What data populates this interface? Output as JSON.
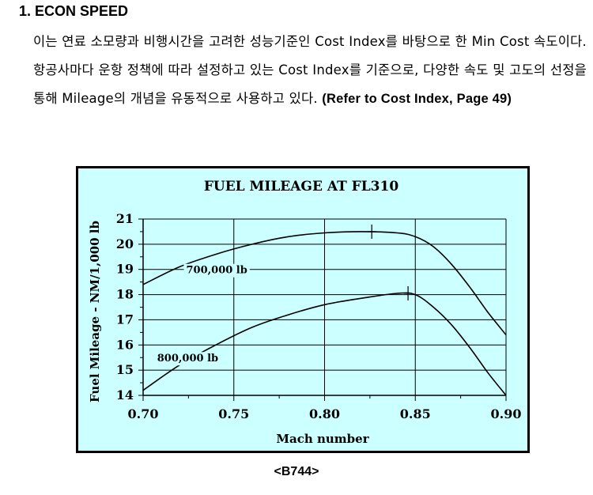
{
  "heading": "1. ECON SPEED",
  "paragraph": {
    "text": "이는 연료 소모량과 비행시간을 고려한 성능기준인 Cost Index를 바탕으로 한 Min Cost 속도이다. 항공사마다 운항 정책에 따라 설정하고 있는 Cost Index를 기준으로, 다양한 속도 및 고도의 선정을 통해 Mileage의 개념을 유동적으로 사용하고 있다. ",
    "reference": "(Refer to Cost Index, Page 49)"
  },
  "caption": "<B744>",
  "colors": {
    "plot_background": "#ccffff",
    "curve": "#000000",
    "grid": "#000000"
  },
  "chart_data": {
    "type": "line",
    "title": "FUEL MILEAGE AT FL310",
    "xlabel": "Mach number",
    "ylabel": "Fuel Mileage - NM/1,000 lb",
    "xlim": [
      0.7,
      0.9
    ],
    "ylim": [
      14,
      21
    ],
    "x_ticks": [
      "0.70",
      "0.75",
      "0.80",
      "0.85",
      "0.90"
    ],
    "y_ticks": [
      "14",
      "15",
      "16",
      "17",
      "18",
      "19",
      "20",
      "21"
    ],
    "grid": true,
    "series": [
      {
        "name": "700,000 lb",
        "x": [
          0.7,
          0.72,
          0.74,
          0.76,
          0.78,
          0.8,
          0.82,
          0.84,
          0.85,
          0.86,
          0.87,
          0.88,
          0.89,
          0.9
        ],
        "y": [
          18.4,
          19.1,
          19.6,
          20.0,
          20.3,
          20.45,
          20.5,
          20.45,
          20.3,
          19.9,
          19.2,
          18.3,
          17.3,
          16.4
        ],
        "optimum_marker": {
          "x": 0.826,
          "y": 20.5
        }
      },
      {
        "name": "800,000 lb",
        "x": [
          0.7,
          0.72,
          0.74,
          0.76,
          0.78,
          0.8,
          0.82,
          0.84,
          0.85,
          0.86,
          0.87,
          0.88,
          0.89,
          0.9
        ],
        "y": [
          14.2,
          15.2,
          16.0,
          16.7,
          17.2,
          17.6,
          17.85,
          18.05,
          18.0,
          17.5,
          16.8,
          15.9,
          14.9,
          14.0
        ],
        "optimum_marker": {
          "x": 0.846,
          "y": 18.05
        }
      }
    ]
  }
}
